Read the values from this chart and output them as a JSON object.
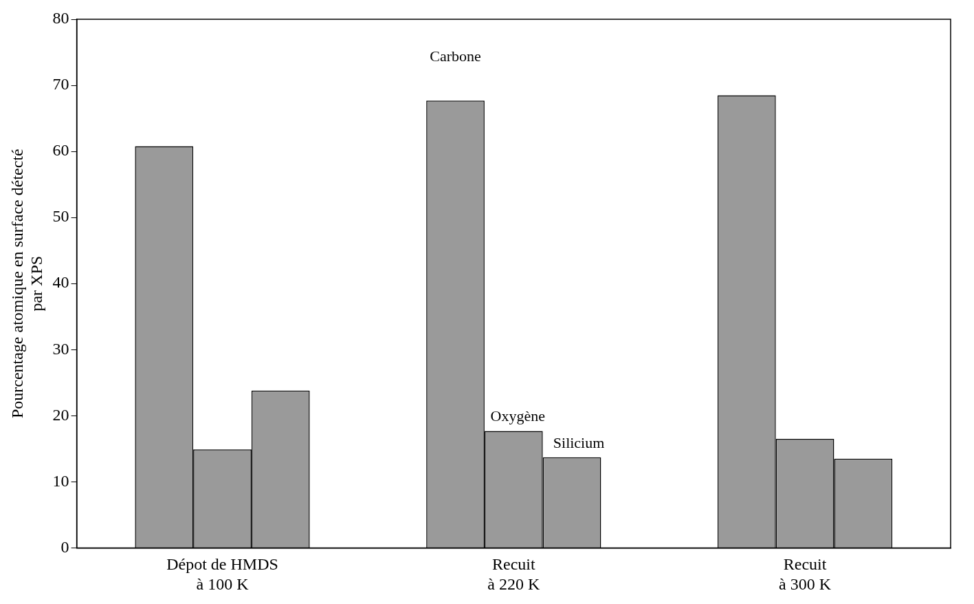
{
  "chart_data": {
    "type": "bar",
    "ylabel": "Pourcentage atomique en surface détecté\npar XPS",
    "categories": [
      "Dépot de HMDS\nà 100 K",
      "Recuit\nà 220 K",
      "Recuit\nà 300 K"
    ],
    "series": [
      {
        "name": "Carbone",
        "color": "#9a9a9a",
        "values": [
          60.8,
          67.7,
          68.5
        ]
      },
      {
        "name": "Oxygène",
        "color": "#9a9a9a",
        "values": [
          14.9,
          17.7,
          16.5
        ]
      },
      {
        "name": "Silicium",
        "color": "#9a9a9a",
        "values": [
          23.8,
          13.7,
          13.5
        ]
      }
    ],
    "ylim": [
      0,
      80
    ],
    "yticks": [
      0,
      10,
      20,
      30,
      40,
      50,
      60,
      70,
      80
    ],
    "grid": false,
    "legend": false
  }
}
